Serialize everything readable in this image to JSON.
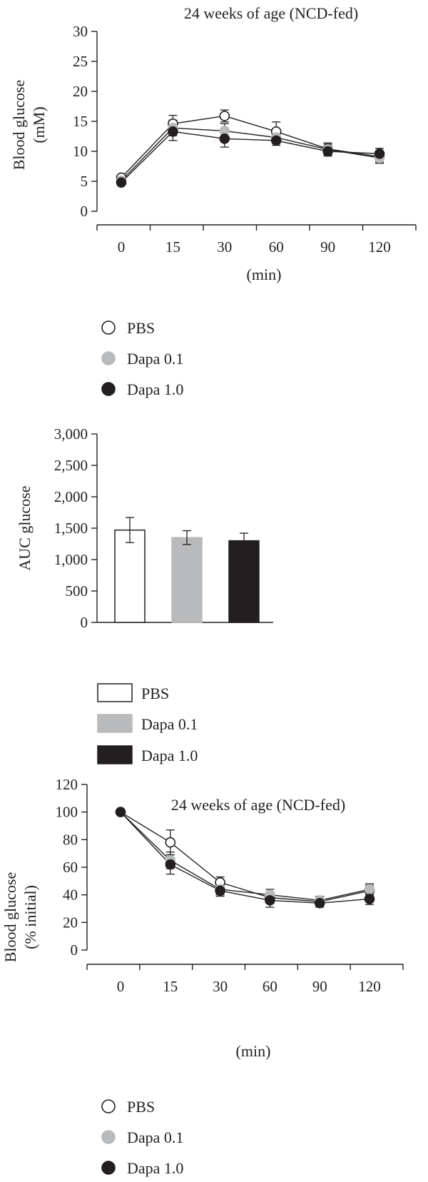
{
  "colors": {
    "ink": "#231f20",
    "pbs": "#ffffff",
    "dapa01": "#b9babc",
    "dapa10": "#231f20"
  },
  "chart_data": [
    {
      "type": "line",
      "title": "24 weeks of age (NCD-fed)",
      "xlabel": "(min)",
      "ylabel": "Blood glucose (mM)",
      "ylabel_lines": [
        "Blood glucose",
        "(mM)"
      ],
      "categories": [
        "0",
        "15",
        "30",
        "60",
        "90",
        "120"
      ],
      "yticks": [
        "0",
        "5",
        "10",
        "15",
        "20",
        "25",
        "30"
      ],
      "ylim": [
        0,
        30
      ],
      "grid": false,
      "legend_position": "below",
      "series": [
        {
          "name": "PBS",
          "marker": "open-circle",
          "values": [
            5.6,
            14.6,
            15.9,
            13.3,
            10.4,
            9.1
          ],
          "errors": [
            0.4,
            1.4,
            1.0,
            1.6,
            1.0,
            0.9
          ]
        },
        {
          "name": "Dapa 0.1",
          "marker": "grey-circle",
          "values": [
            5.1,
            13.9,
            13.4,
            12.3,
            10.3,
            8.9
          ],
          "errors": [
            0.4,
            1.3,
            1.2,
            0.9,
            0.9,
            0.9
          ]
        },
        {
          "name": "Dapa 1.0",
          "marker": "filled-circle",
          "values": [
            4.8,
            13.3,
            12.1,
            11.8,
            10.0,
            9.6
          ],
          "errors": [
            0.3,
            1.5,
            1.4,
            0.8,
            0.8,
            0.9
          ]
        }
      ]
    },
    {
      "type": "bar",
      "title": "",
      "xlabel": "",
      "ylabel": "AUC glucose",
      "categories": [
        "PBS",
        "Dapa 0.1",
        "Dapa 1.0"
      ],
      "values": [
        1470,
        1350,
        1300
      ],
      "errors": [
        200,
        110,
        120
      ],
      "yticks": [
        "0",
        "500",
        "1,000",
        "1,500",
        "2,000",
        "2,500",
        "3,000"
      ],
      "ylim": [
        0,
        3000
      ],
      "grid": false,
      "legend_position": "below",
      "legend": [
        "PBS",
        "Dapa 0.1",
        "Dapa 1.0"
      ]
    },
    {
      "type": "line",
      "title": "24 weeks of age (NCD-fed)",
      "xlabel": "(min)",
      "ylabel": "Blood glucose (% initial)",
      "ylabel_lines": [
        "Blood glucose",
        "(% initial)"
      ],
      "categories": [
        "0",
        "15",
        "30",
        "60",
        "90",
        "120"
      ],
      "yticks": [
        "0",
        "20",
        "40",
        "60",
        "80",
        "100",
        "120"
      ],
      "ylim": [
        0,
        120
      ],
      "grid": false,
      "legend_position": "below",
      "series": [
        {
          "name": "PBS",
          "marker": "open-circle",
          "values": [
            100,
            78,
            49,
            38,
            35,
            43
          ],
          "errors": [
            0,
            9,
            4,
            4,
            3,
            4
          ]
        },
        {
          "name": "Dapa 0.1",
          "marker": "grey-circle",
          "values": [
            100,
            65,
            44,
            40,
            36,
            44
          ],
          "errors": [
            0,
            6,
            4,
            4,
            3,
            4
          ]
        },
        {
          "name": "Dapa 1.0",
          "marker": "filled-circle",
          "values": [
            100,
            62,
            43,
            36,
            34,
            37
          ],
          "errors": [
            0,
            7,
            4,
            5,
            3,
            4
          ]
        }
      ]
    }
  ]
}
